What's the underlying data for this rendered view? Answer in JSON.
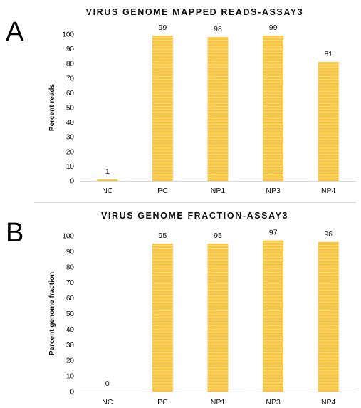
{
  "panels": {
    "a": {
      "letter": "A"
    },
    "b": {
      "letter": "B"
    }
  },
  "colors": {
    "bar": "#f7c744",
    "bar_stripe": "#ffffff",
    "axis": "#d9d9d9"
  },
  "chart_data": [
    {
      "type": "bar",
      "title": "VIRUS GENOME MAPPED READS-ASSAY3",
      "xlabel": "",
      "ylabel": "Percent reads",
      "categories": [
        "NC",
        "PC",
        "NP1",
        "NP3",
        "NP4"
      ],
      "values": [
        1,
        99,
        98,
        99,
        81
      ],
      "data_labels": [
        "1",
        "99",
        "98",
        "99",
        "81"
      ],
      "ylim": [
        0,
        100
      ],
      "yticks": [
        0,
        10,
        20,
        30,
        40,
        50,
        60,
        70,
        80,
        90,
        100
      ],
      "grid": false,
      "legend": "none"
    },
    {
      "type": "bar",
      "title": "VIRUS GENOME FRACTION-ASSAY3",
      "xlabel": "",
      "ylabel": "Percent genome fraction",
      "categories": [
        "NC",
        "PC",
        "NP1",
        "NP3",
        "NP4"
      ],
      "values": [
        0,
        95,
        95,
        97,
        96
      ],
      "data_labels": [
        "0",
        "95",
        "95",
        "97",
        "96"
      ],
      "ylim": [
        0,
        100
      ],
      "yticks": [
        0,
        10,
        20,
        30,
        40,
        50,
        60,
        70,
        80,
        90,
        100
      ],
      "grid": false,
      "legend": "none"
    }
  ]
}
